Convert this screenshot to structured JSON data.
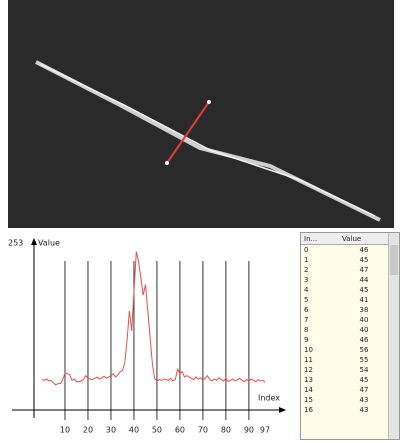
{
  "chart_data": {
    "type": "line",
    "y_label": "Value",
    "x_label": "Index",
    "color": "#e05050",
    "values": [
      46,
      45,
      47,
      44,
      45,
      41,
      38,
      40,
      40,
      46,
      56,
      55,
      54,
      45,
      47,
      43,
      43,
      44,
      46,
      52,
      48,
      47,
      46,
      48,
      50,
      47,
      49,
      51,
      48,
      50,
      52,
      55,
      50,
      53,
      58,
      60,
      72,
      106,
      150,
      120,
      180,
      240,
      224,
      200,
      174,
      190,
      150,
      110,
      70,
      48,
      44,
      46,
      45,
      47,
      46,
      45,
      48,
      44,
      46,
      62,
      55,
      58,
      50,
      52,
      50,
      48,
      46,
      50,
      47,
      49,
      45,
      48,
      52,
      46,
      44,
      47,
      45,
      49,
      46,
      44,
      48,
      43,
      45,
      47,
      44,
      46,
      48,
      45,
      43,
      46,
      44,
      47,
      45,
      43,
      46,
      44,
      45,
      42
    ],
    "xlim": [
      0,
      97
    ],
    "ylim": [
      0,
      253
    ],
    "xticks": [
      10,
      20,
      30,
      40,
      50,
      60,
      70,
      80,
      90,
      97
    ],
    "yticks": [
      253
    ],
    "grid": true
  },
  "table": {
    "headers": [
      "In...",
      "Value"
    ],
    "index": [
      0,
      1,
      2,
      3,
      4,
      5,
      6,
      7,
      8,
      9,
      10,
      11,
      12,
      13,
      14,
      15,
      16
    ]
  }
}
